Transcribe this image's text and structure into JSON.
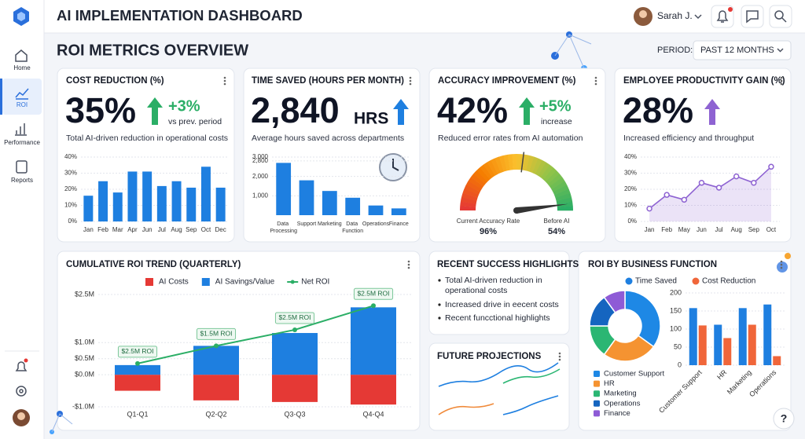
{
  "app": {
    "title": "AI IMPLEMENTATION DASHBOARD",
    "help": "?"
  },
  "nav": [
    "Home",
    "ROI",
    "Performance",
    "Reports"
  ],
  "user": {
    "name": "Sarah J."
  },
  "section": {
    "title": "ROI METRICS OVERVIEW",
    "period_label": "PERIOD:",
    "period": "PAST 12 MONTHS"
  },
  "kpis": [
    {
      "title": "COST REDUCTION (%)",
      "value": "35%",
      "delta": "+3%",
      "delta_note": "vs prev. period",
      "description": "Total AI-driven reduction in operational costs"
    },
    {
      "title": "TIME SAVED (HOURS PER MONTH)",
      "value": "2,840",
      "unit": "HRS",
      "description": "Average hours saved across departments"
    },
    {
      "title": "ACCURACY IMPROVEMENT (%)",
      "value": "42%",
      "delta": "+5%",
      "delta_note": "increase",
      "description": "Reduced error rates from AI automation"
    },
    {
      "title": "EMPLOYEE PRODUCTIVITY GAIN (%)",
      "value": "28%",
      "description": "Increased efficiency and throughput"
    }
  ],
  "chart_data": [
    {
      "type": "bar",
      "categories": [
        "Jan",
        "Feb",
        "Mar",
        "Apr",
        "Jun",
        "Jul",
        "Aug",
        "Sep",
        "Oct",
        "Dec"
      ],
      "values": [
        16,
        25,
        18,
        31,
        31,
        22,
        25,
        21,
        34,
        21
      ],
      "color": "#1e7fe0",
      "ylim": [
        0,
        40
      ],
      "yticks": [
        {
          "value": 0,
          "label": "0%"
        },
        {
          "value": 10,
          "label": "10%"
        },
        {
          "value": 20,
          "label": "20%"
        },
        {
          "value": 30,
          "label": "30%"
        },
        {
          "value": 40,
          "label": "40%"
        }
      ],
      "grid": true
    },
    {
      "type": "bar",
      "categories": [
        "Data Processing",
        "Support",
        "Marketing",
        "Data Function",
        "Operations",
        "Finance"
      ],
      "values": [
        2700,
        1800,
        1250,
        900,
        500,
        350
      ],
      "color": "#1e7fe0",
      "ylim": [
        0,
        3000
      ],
      "yticks": [
        {
          "value": 1000,
          "label": "1,000"
        },
        {
          "value": 2000,
          "label": "2,000"
        },
        {
          "value": 2800,
          "label": "2,800"
        },
        {
          "value": 3000,
          "label": "3,000"
        }
      ],
      "grid": true
    },
    {
      "type": "gauge",
      "labels": [
        "Current Accuracy Rate",
        "Before AI"
      ],
      "values": [
        96,
        54
      ],
      "value_labels": [
        "96%",
        "54%"
      ],
      "ylim": [
        0,
        100
      ]
    },
    {
      "type": "line",
      "categories": [
        "Jan",
        "Feb",
        "May",
        "Jun",
        "Jul",
        "Aug",
        "Sep",
        "Oct"
      ],
      "values": [
        8,
        16.5,
        13.5,
        24,
        21,
        28,
        24,
        34
      ],
      "color": "#8e63d2",
      "ylim": [
        0,
        40
      ],
      "yticks": [
        {
          "value": 0,
          "label": "0%"
        },
        {
          "value": 10,
          "label": "10%"
        },
        {
          "value": 20,
          "label": "20%"
        },
        {
          "value": 30,
          "label": "30%"
        },
        {
          "value": 40,
          "label": "40%"
        }
      ],
      "grid": true
    },
    {
      "type": "combo",
      "title": "CUMULATIVE ROI TREND (QUARTERLY)",
      "categories": [
        "Q1-Q1",
        "Q2-Q2",
        "Q3-Q3",
        "Q4-Q4"
      ],
      "series": [
        {
          "name": "AI Costs",
          "color": "#e53935",
          "kind": "bar",
          "values": [
            -0.5,
            -0.8,
            -0.85,
            -0.93
          ]
        },
        {
          "name": "AI Savings/Value",
          "color": "#1e7fe0",
          "kind": "bar",
          "values": [
            0.3,
            0.9,
            1.3,
            2.1
          ]
        },
        {
          "name": "Net ROI",
          "color": "#2bae66",
          "kind": "line",
          "values": [
            0.35,
            0.9,
            1.4,
            2.15
          ]
        }
      ],
      "annotations": [
        "$2.5M ROI",
        "$1.5M ROI",
        "$2.5M ROI",
        "$2.5M ROI"
      ],
      "ylim": [
        -1,
        2.5
      ],
      "yticks": [
        {
          "value": -1,
          "label": "-$1.0M"
        },
        {
          "value": 0,
          "label": "$0.0M"
        },
        {
          "value": 0.5,
          "label": "$0.5M"
        },
        {
          "value": 1,
          "label": "$1.0M"
        },
        {
          "value": 2.5,
          "label": "$2.5M"
        }
      ],
      "grid": true
    },
    {
      "type": "pie",
      "categories": [
        "Customer Support",
        "HR",
        "Marketing",
        "Operations",
        "Finance"
      ],
      "values": [
        35,
        25,
        15,
        15,
        10
      ],
      "colors": [
        "#1e88e5",
        "#f59331",
        "#2bb673",
        "#1565c0",
        "#8e5bd6"
      ]
    },
    {
      "type": "grouped-bar",
      "title": "ROI BY BUSINESS FUNCTION",
      "categories": [
        "Customer Support",
        "HR",
        "Marketing",
        "Operations"
      ],
      "series": [
        {
          "name": "Time Saved",
          "color": "#1e7fe0",
          "values": [
            158,
            112,
            158,
            168
          ]
        },
        {
          "name": "Cost Reduction",
          "color": "#f0663a",
          "values": [
            110,
            75,
            112,
            25
          ]
        }
      ],
      "ylim": [
        0,
        200
      ],
      "yticks": [
        0,
        50,
        100,
        150,
        200
      ],
      "grid": true
    }
  ],
  "highlights": {
    "title": "RECENT SUCCESS HIGHLIGHTS",
    "items": [
      "Total AI-driven reduction in operational costs",
      "Increased drive in eecent costs",
      "Recent funcctional highlights"
    ]
  },
  "projections": {
    "title": "FUTURE PROJECTIONS"
  }
}
